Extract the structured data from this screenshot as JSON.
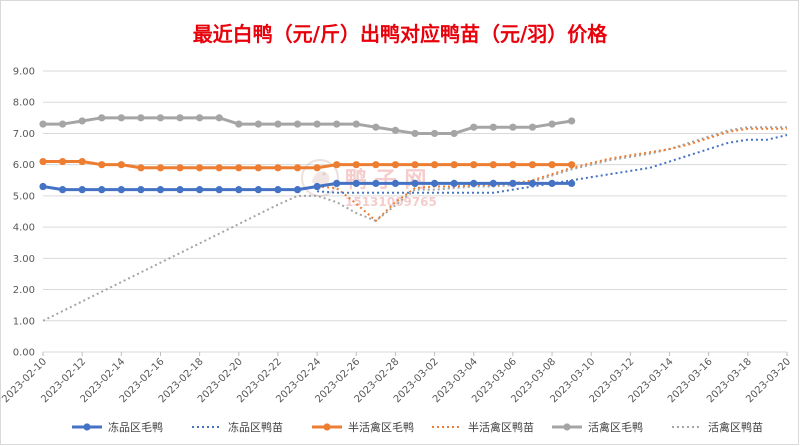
{
  "chart_data": {
    "type": "line",
    "title": "最近白鸭（元/斤）出鸭对应鸭苗（元/羽）价格",
    "xlabel": "",
    "ylabel": "",
    "ylim": [
      0,
      9
    ],
    "yticks": [
      "0.00",
      "1.00",
      "2.00",
      "3.00",
      "4.00",
      "5.00",
      "6.00",
      "7.00",
      "8.00",
      "9.00"
    ],
    "x": [
      "2023-02-10",
      "2023-02-11",
      "2023-02-12",
      "2023-02-13",
      "2023-02-14",
      "2023-02-15",
      "2023-02-16",
      "2023-02-17",
      "2023-02-18",
      "2023-02-19",
      "2023-02-20",
      "2023-02-21",
      "2023-02-22",
      "2023-02-23",
      "2023-02-24",
      "2023-02-25",
      "2023-02-26",
      "2023-02-27",
      "2023-02-28",
      "2023-03-01",
      "2023-03-02",
      "2023-03-03",
      "2023-03-04",
      "2023-03-05",
      "2023-03-06",
      "2023-03-07",
      "2023-03-08",
      "2023-03-09",
      "2023-03-10",
      "2023-03-11",
      "2023-03-12",
      "2023-03-13",
      "2023-03-14",
      "2023-03-15",
      "2023-03-16",
      "2023-03-17",
      "2023-03-18",
      "2023-03-19",
      "2023-03-20"
    ],
    "xtick_labels": [
      "2023-02-10",
      "2023-02-12",
      "2023-02-14",
      "2023-02-16",
      "2023-02-18",
      "2023-02-20",
      "2023-02-22",
      "2023-02-24",
      "2023-02-26",
      "2023-02-28",
      "2023-03-02",
      "2023-03-04",
      "2023-03-06",
      "2023-03-08",
      "2023-03-10",
      "2023-03-12",
      "2023-03-14",
      "2023-03-16",
      "2023-03-18",
      "2023-03-20"
    ],
    "grid": true,
    "legend_position": "bottom",
    "series": [
      {
        "name": "冻品区毛鸭",
        "color": "#4472c4",
        "style": "solid-markers",
        "values": [
          5.3,
          5.2,
          5.2,
          5.2,
          5.2,
          5.2,
          5.2,
          5.2,
          5.2,
          5.2,
          5.2,
          5.2,
          5.2,
          5.2,
          5.3,
          5.4,
          5.4,
          5.4,
          5.4,
          5.4,
          5.4,
          5.4,
          5.4,
          5.4,
          5.4,
          5.4,
          5.4,
          5.4,
          null,
          null,
          null,
          null,
          null,
          null,
          null,
          null,
          null,
          null,
          null
        ]
      },
      {
        "name": "冻品区鸭苗",
        "color": "#4472c4",
        "style": "dotted",
        "values": [
          null,
          null,
          null,
          null,
          null,
          null,
          null,
          null,
          null,
          null,
          null,
          null,
          null,
          null,
          5.15,
          5.1,
          5.1,
          5.1,
          5.1,
          5.1,
          5.1,
          5.1,
          5.1,
          5.1,
          5.2,
          5.3,
          5.4,
          5.5,
          5.6,
          5.7,
          5.8,
          5.9,
          6.1,
          6.3,
          6.5,
          6.7,
          6.8,
          6.8,
          6.95
        ]
      },
      {
        "name": "半活禽区毛鸭",
        "color": "#ed7d31",
        "style": "solid-markers",
        "values": [
          6.1,
          6.1,
          6.1,
          6.0,
          6.0,
          5.9,
          5.9,
          5.9,
          5.9,
          5.9,
          5.9,
          5.9,
          5.9,
          5.9,
          5.9,
          6.0,
          6.0,
          6.0,
          6.0,
          6.0,
          6.0,
          6.0,
          6.0,
          6.0,
          6.0,
          6.0,
          6.0,
          6.0,
          null,
          null,
          null,
          null,
          null,
          null,
          null,
          null,
          null,
          null,
          null
        ]
      },
      {
        "name": "半活禽区鸭苗",
        "color": "#ed7d31",
        "style": "dotted",
        "values": [
          null,
          null,
          null,
          null,
          null,
          null,
          null,
          null,
          null,
          null,
          null,
          null,
          null,
          null,
          5.3,
          5.25,
          4.75,
          4.2,
          4.8,
          5.25,
          5.3,
          5.3,
          5.35,
          5.35,
          5.4,
          5.5,
          5.7,
          5.9,
          6.05,
          6.2,
          6.3,
          6.4,
          6.5,
          6.65,
          6.85,
          7.05,
          7.15,
          7.15,
          7.15
        ]
      },
      {
        "name": "活禽区毛鸭",
        "color": "#a5a5a5",
        "style": "solid-markers",
        "values": [
          7.3,
          7.3,
          7.4,
          7.5,
          7.5,
          7.5,
          7.5,
          7.5,
          7.5,
          7.5,
          7.3,
          7.3,
          7.3,
          7.3,
          7.3,
          7.3,
          7.3,
          7.2,
          7.1,
          7.0,
          7.0,
          7.0,
          7.2,
          7.2,
          7.2,
          7.2,
          7.3,
          7.4,
          null,
          null,
          null,
          null,
          null,
          null,
          null,
          null,
          null,
          null,
          null
        ]
      },
      {
        "name": "活禽区鸭苗",
        "color": "#a5a5a5",
        "style": "dotted",
        "values": [
          1.0,
          1.31,
          1.62,
          1.93,
          2.24,
          2.55,
          2.86,
          3.17,
          3.48,
          3.79,
          4.1,
          4.41,
          4.72,
          5.0,
          5.0,
          4.8,
          4.45,
          4.2,
          4.7,
          5.2,
          5.2,
          5.25,
          5.3,
          5.3,
          5.35,
          5.45,
          5.65,
          5.85,
          6.0,
          6.15,
          6.25,
          6.35,
          6.5,
          6.7,
          6.9,
          7.1,
          7.2,
          7.2,
          7.2
        ]
      }
    ]
  },
  "watermark": {
    "brand_text": "鸭 子 网",
    "phone_text": "15131009765",
    "icon": "duck-logo-icon"
  }
}
